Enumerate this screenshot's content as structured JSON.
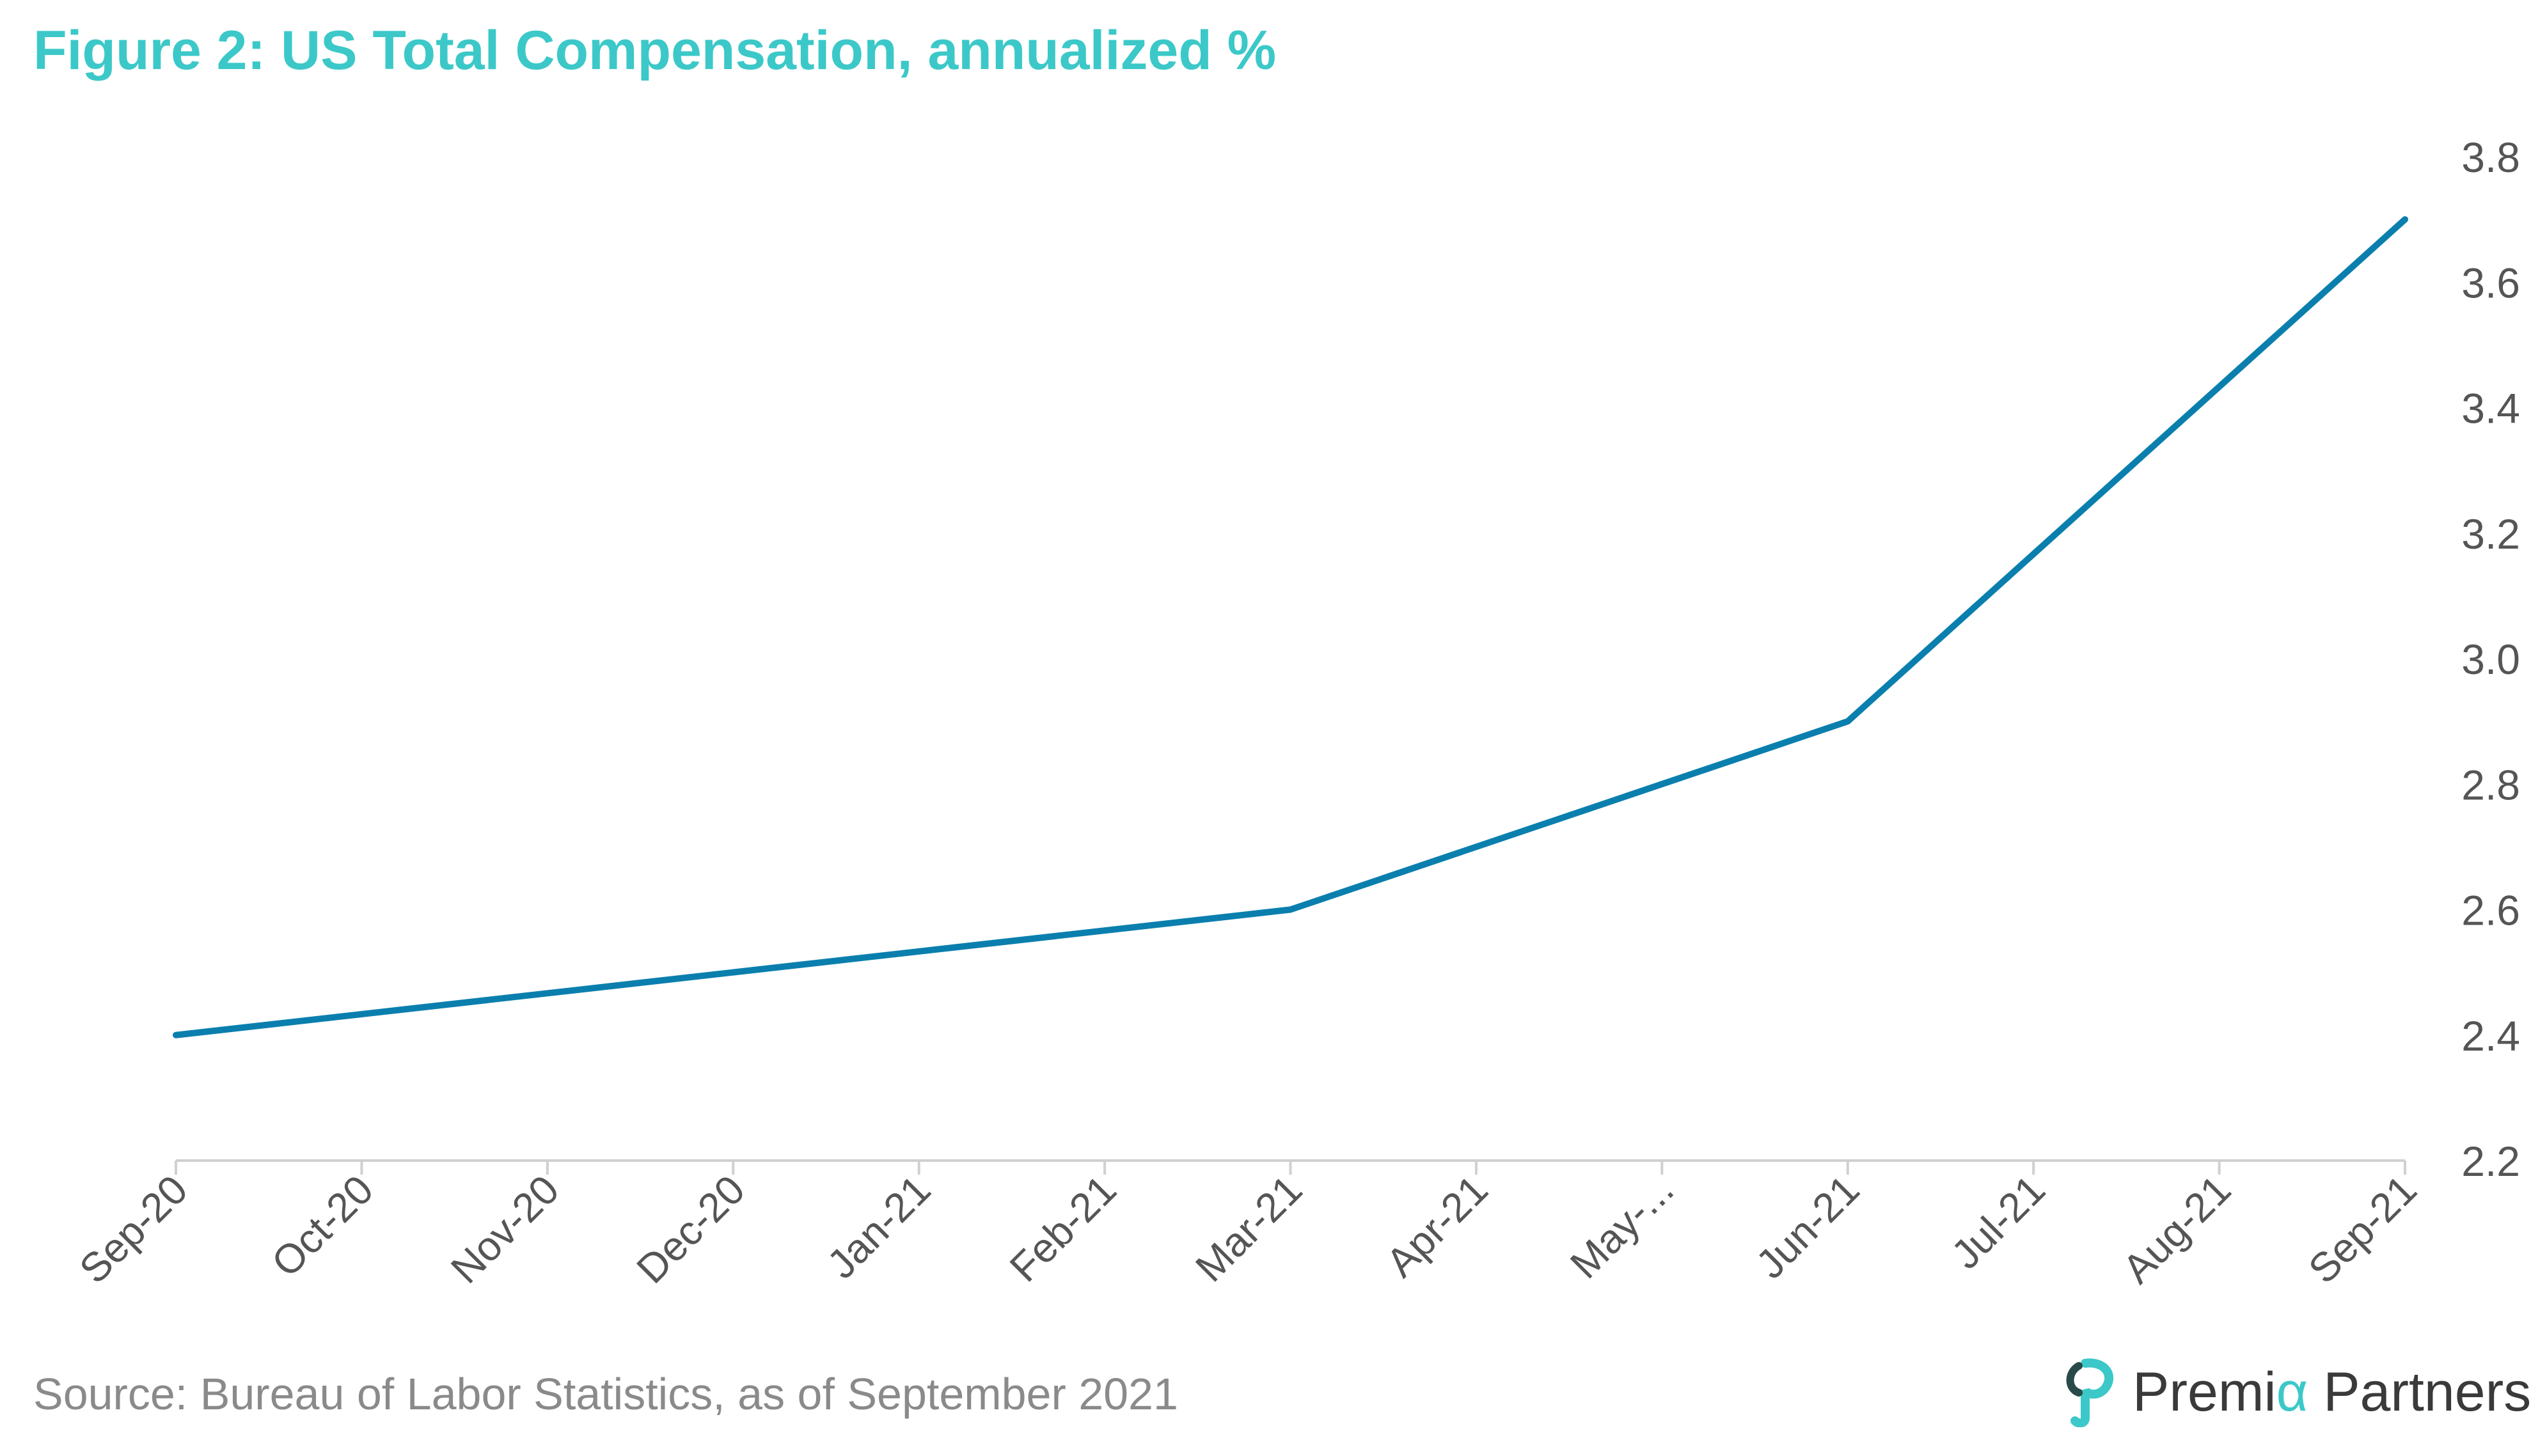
{
  "title": "Figure 2: US Total Compensation, annualized %",
  "source": "Source: Bureau of Labor Statistics, as of September 2021",
  "logo": {
    "prefix": "Premi",
    "alpha": "α",
    "suffix": " Partners"
  },
  "colors": {
    "title": "#3cc8c8",
    "line": "#0a7fae",
    "axis": "#d0d0d0",
    "tick_text": "#555555",
    "source_text": "#8a8a8a",
    "logo_accent": "#3cc8c8"
  },
  "chart_data": {
    "type": "line",
    "title": "Figure 2: US Total Compensation, annualized %",
    "categories": [
      "Sep-20",
      "Oct-20",
      "Nov-20",
      "Dec-20",
      "Jan-21",
      "Feb-21",
      "Mar-21",
      "Apr-21",
      "May-...",
      "Jun-21",
      "Jul-21",
      "Aug-21",
      "Sep-21"
    ],
    "series": [
      {
        "points": [
          {
            "x": "Sep-20",
            "y": 2.4
          },
          {
            "x": "Dec-20",
            "y": 2.5
          },
          {
            "x": "Mar-21",
            "y": 2.6
          },
          {
            "x": "Jun-21",
            "y": 2.9
          },
          {
            "x": "Sep-21",
            "y": 3.7
          }
        ]
      }
    ],
    "y_ticks": [
      2.2,
      2.4,
      2.6,
      2.8,
      3.0,
      3.2,
      3.4,
      3.6,
      3.8
    ],
    "y_tick_labels": [
      "2.2",
      "2.4",
      "2.6",
      "2.8",
      "3.0",
      "3.2",
      "3.4",
      "3.6",
      "3.8"
    ],
    "ylim": [
      2.2,
      3.8
    ],
    "y_axis_side": "right",
    "grid": false,
    "legend": "none"
  }
}
